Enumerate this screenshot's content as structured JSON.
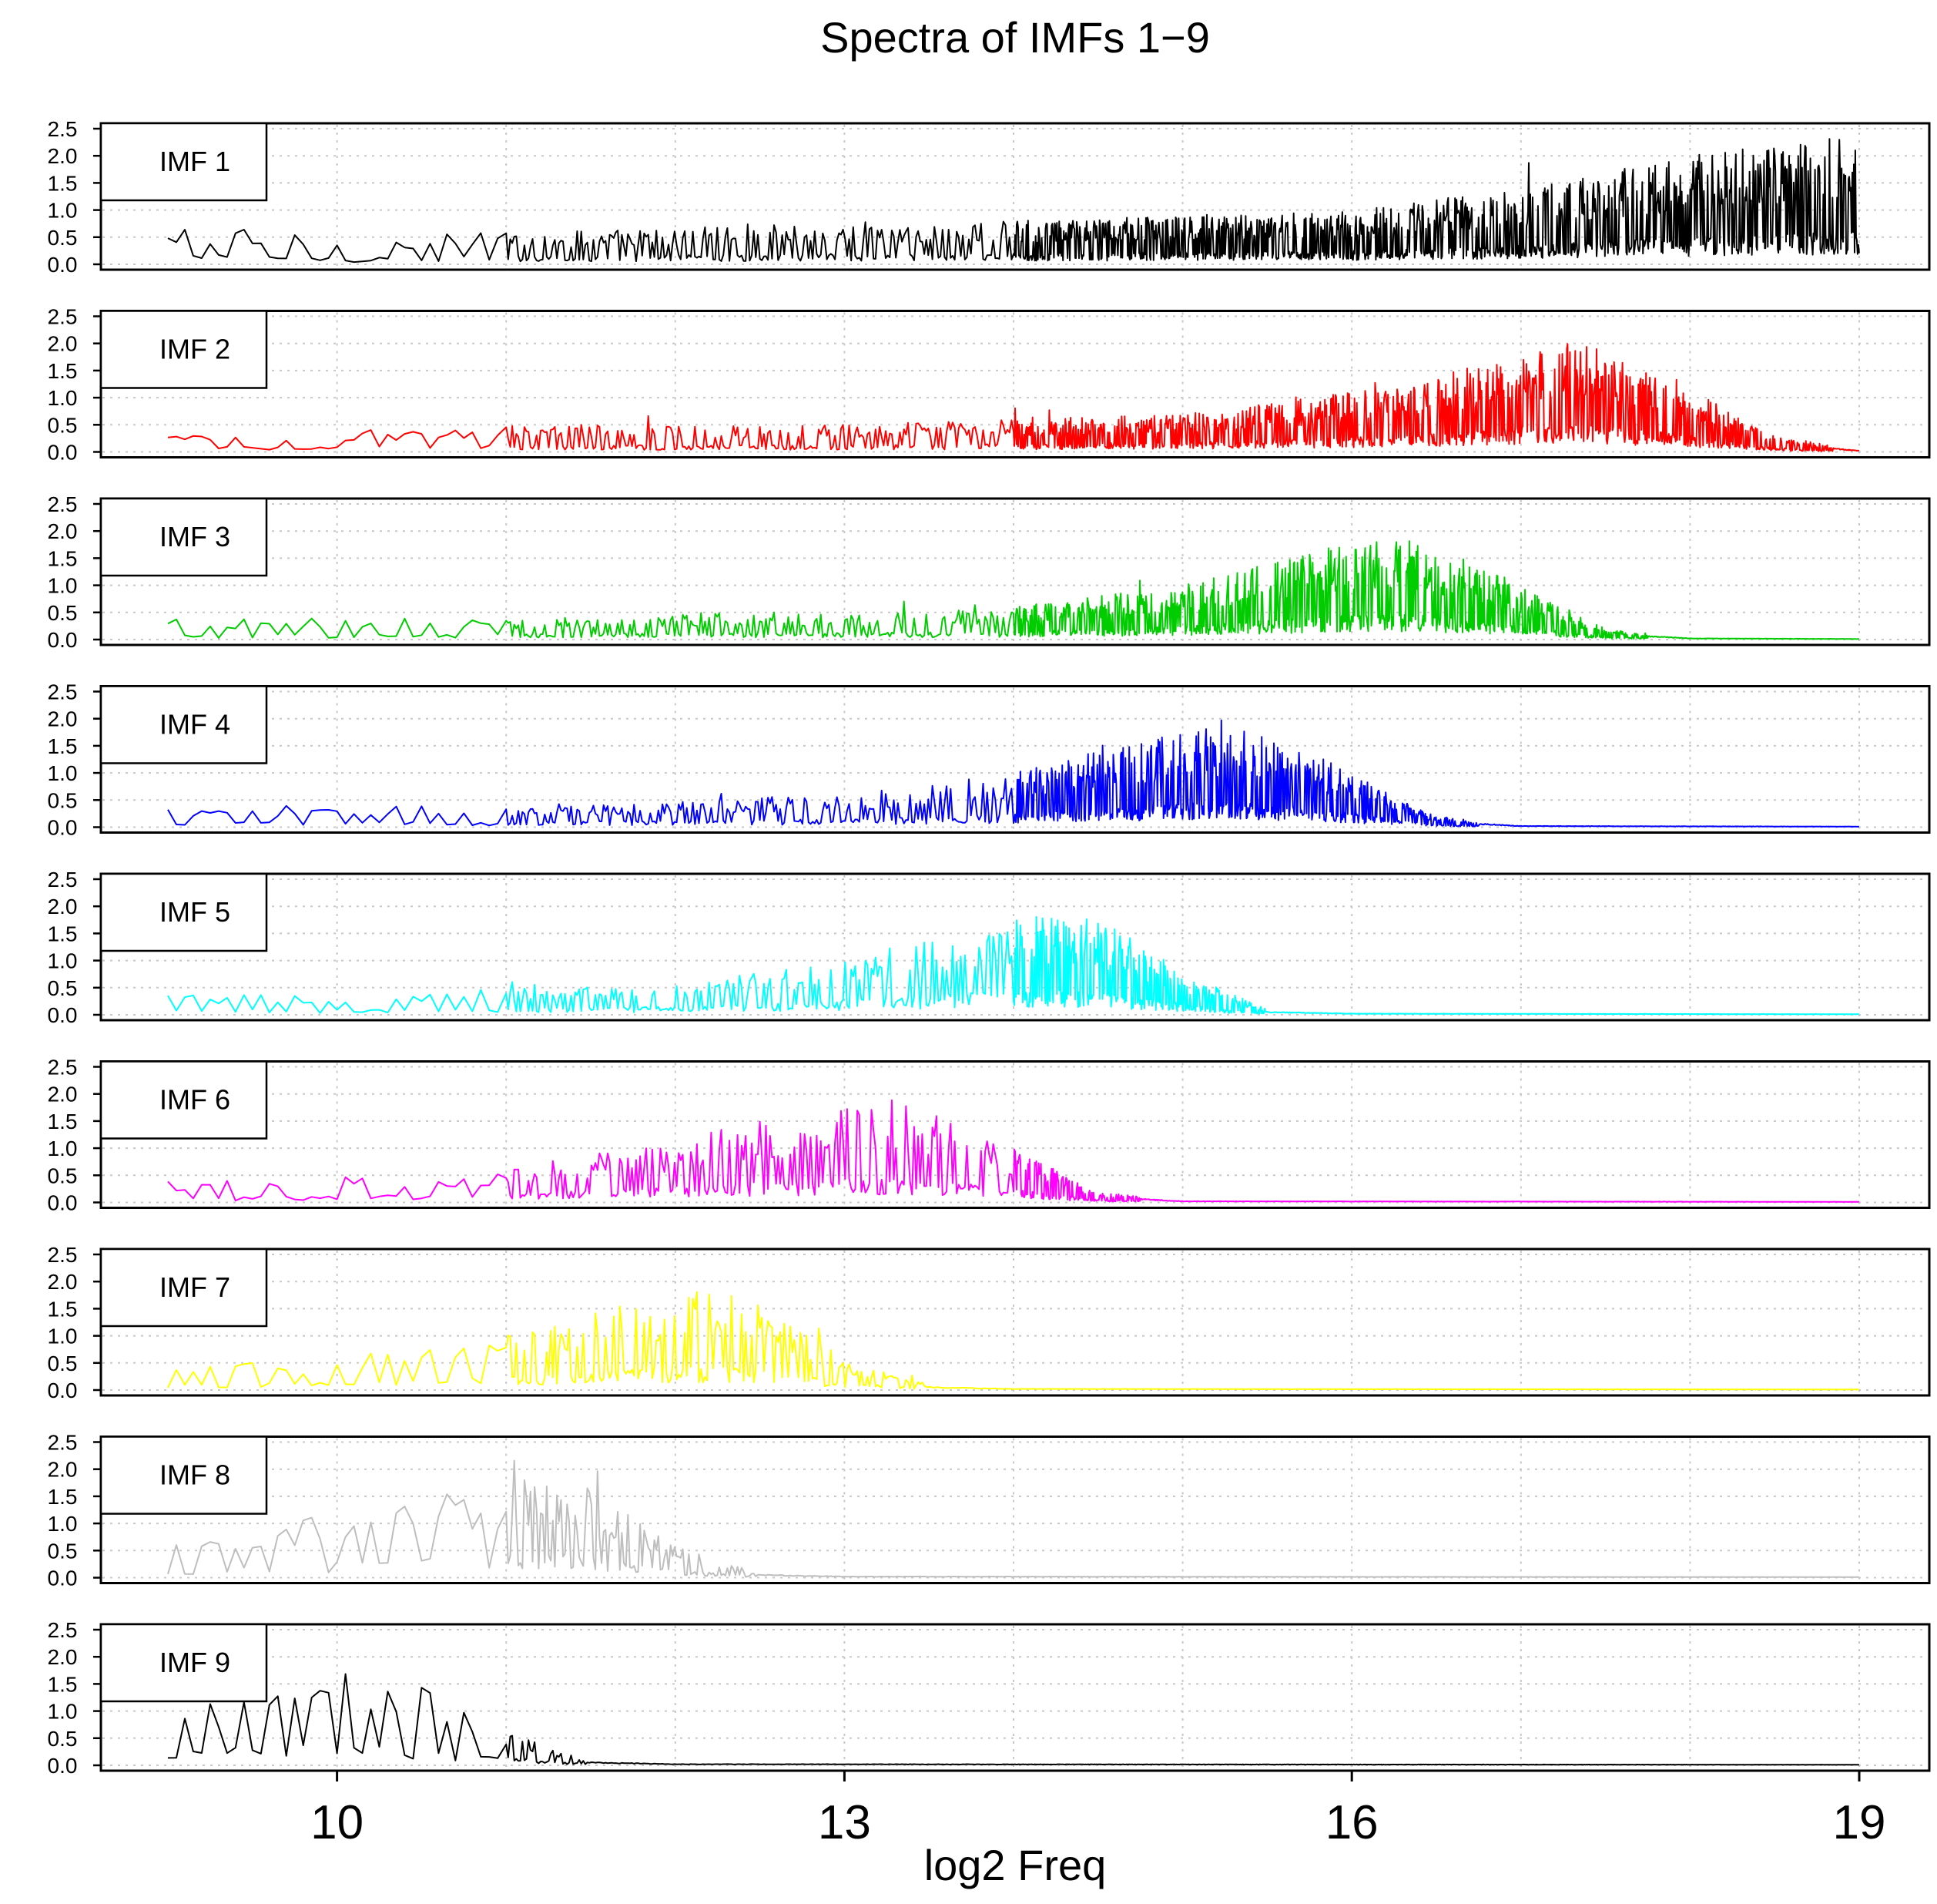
{
  "chart_data": {
    "type": "line",
    "title": "Spectra of IMFs 1−9",
    "xlabel": "log2 Freq",
    "ylabel": "",
    "xlim": [
      9,
      19
    ],
    "ylim": [
      0,
      2.5
    ],
    "x_ticks": [
      "10",
      "13",
      "16",
      "19"
    ],
    "y_ticks": [
      "0.0",
      "0.5",
      "1.0",
      "1.5",
      "2.0",
      "2.5"
    ],
    "grid": true,
    "series": [
      {
        "name": "IMF  1",
        "color": "#000000",
        "x": [
          9,
          10,
          11,
          12,
          13,
          14,
          15,
          16,
          17,
          18,
          19
        ],
        "values": [
          0.4,
          0.25,
          0.3,
          0.35,
          0.4,
          0.4,
          0.45,
          0.5,
          0.7,
          1.0,
          1.2
        ]
      },
      {
        "name": "IMF  2",
        "color": "#ff0000",
        "x": [
          9,
          10,
          11,
          12,
          13,
          14,
          15,
          16,
          16.5,
          17,
          17.3,
          17.6,
          18,
          18.5,
          19
        ],
        "values": [
          0.2,
          0.2,
          0.25,
          0.25,
          0.25,
          0.3,
          0.35,
          0.55,
          0.7,
          0.95,
          1.0,
          0.9,
          0.6,
          0.15,
          0.02
        ]
      },
      {
        "name": "IMF  3",
        "color": "#00cc00",
        "x": [
          9,
          10,
          11,
          12,
          13,
          14,
          14.5,
          15,
          15.5,
          16,
          16.3,
          16.6,
          17,
          17.5,
          18,
          19
        ],
        "values": [
          0.2,
          0.2,
          0.2,
          0.25,
          0.25,
          0.3,
          0.4,
          0.5,
          0.7,
          0.9,
          0.95,
          0.8,
          0.5,
          0.1,
          0.02,
          0.01
        ]
      },
      {
        "name": "IMF  4",
        "color": "#0000ff",
        "x": [
          9,
          10,
          11,
          12,
          13,
          13.5,
          14,
          14.5,
          15,
          15.3,
          15.6,
          16,
          16.5,
          17,
          19
        ],
        "values": [
          0.2,
          0.2,
          0.2,
          0.25,
          0.3,
          0.4,
          0.5,
          0.7,
          0.9,
          0.95,
          0.8,
          0.5,
          0.1,
          0.02,
          0.01
        ]
      },
      {
        "name": "IMF  5",
        "color": "#00ffff",
        "x": [
          9,
          10,
          11,
          12,
          12.5,
          13,
          13.5,
          14,
          14.3,
          14.6,
          15,
          15.5,
          16,
          19
        ],
        "values": [
          0.2,
          0.2,
          0.25,
          0.3,
          0.4,
          0.55,
          0.75,
          0.9,
          0.95,
          0.8,
          0.4,
          0.05,
          0.02,
          0.01
        ]
      },
      {
        "name": "IMF  6",
        "color": "#ff00ff",
        "x": [
          9,
          10,
          11,
          11.5,
          12,
          12.5,
          13,
          13.3,
          13.6,
          14,
          14.5,
          15,
          19
        ],
        "values": [
          0.2,
          0.25,
          0.3,
          0.45,
          0.6,
          0.75,
          0.9,
          0.95,
          0.8,
          0.5,
          0.1,
          0.02,
          0.01
        ]
      },
      {
        "name": "IMF  7",
        "color": "#ffff00",
        "x": [
          9,
          10,
          10.5,
          11,
          11.5,
          12,
          12.3,
          12.6,
          13,
          13.5,
          14,
          19
        ],
        "values": [
          0.25,
          0.3,
          0.4,
          0.55,
          0.75,
          0.9,
          0.95,
          0.7,
          0.3,
          0.05,
          0.02,
          0.01
        ]
      },
      {
        "name": "IMF  8",
        "color": "#bebebe",
        "x": [
          9,
          9.5,
          10,
          10.5,
          11,
          11.3,
          11.6,
          12,
          12.5,
          13,
          19
        ],
        "values": [
          0.3,
          0.45,
          0.6,
          0.75,
          0.9,
          0.95,
          0.7,
          0.3,
          0.05,
          0.02,
          0.01
        ]
      },
      {
        "name": "IMF  9",
        "color": "#000000",
        "x": [
          9,
          9.5,
          10,
          10.3,
          10.6,
          11,
          11.5,
          12,
          19
        ],
        "values": [
          0.5,
          0.7,
          0.85,
          0.9,
          0.65,
          0.3,
          0.05,
          0.02,
          0.01
        ]
      }
    ]
  }
}
